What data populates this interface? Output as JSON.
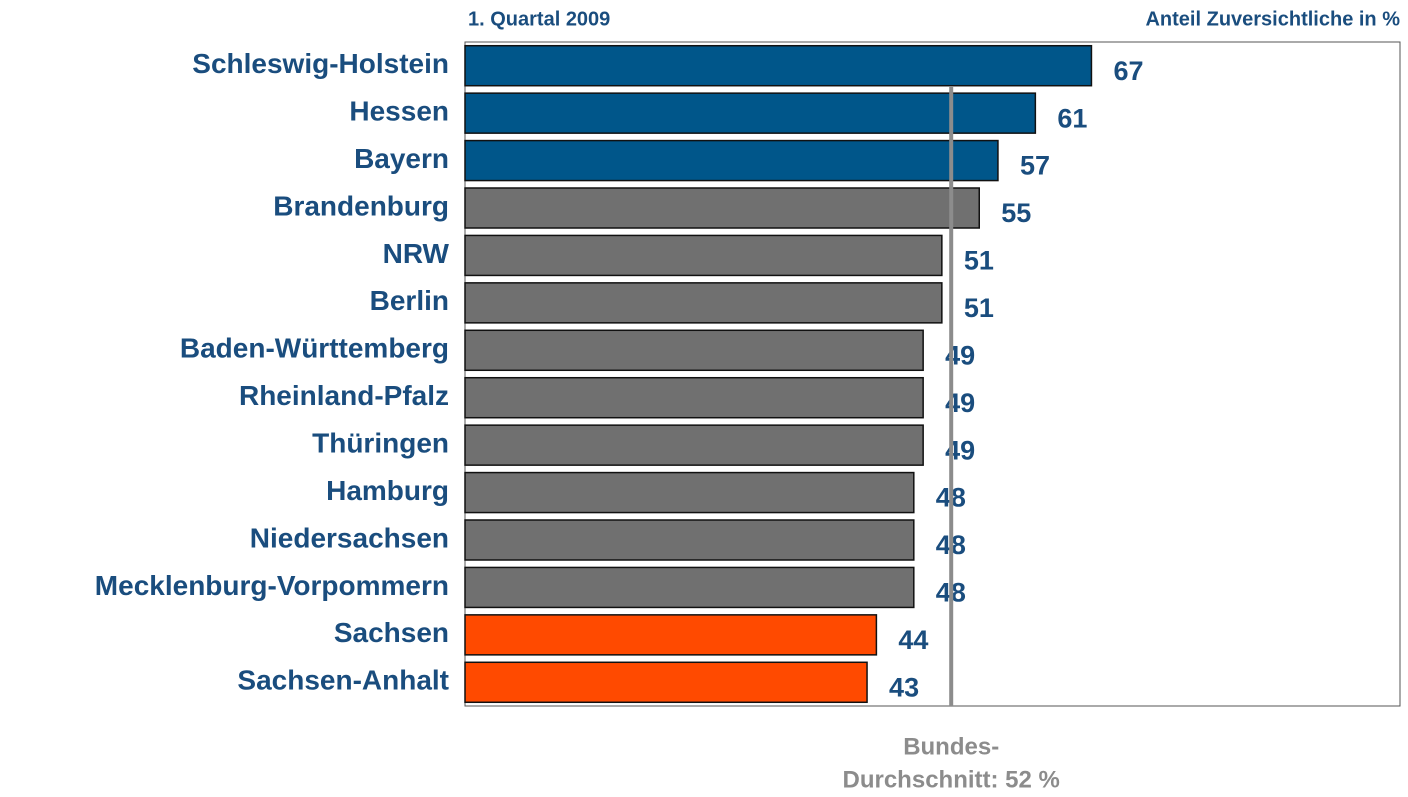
{
  "chart_data": {
    "type": "bar",
    "orientation": "horizontal",
    "subtitle": "1. Quartal 2009",
    "x_label": "Anteil Zuversichtliche in %",
    "categories": [
      "Schleswig-Holstein",
      "Hessen",
      "Bayern",
      "Brandenburg",
      "NRW",
      "Berlin",
      "Baden-Württemberg",
      "Rheinland-Pfalz",
      "Thüringen",
      "Hamburg",
      "Niedersachsen",
      "Mecklenburg-Vorpommern",
      "Sachsen",
      "Sachsen-Anhalt"
    ],
    "values": [
      67,
      61,
      57,
      55,
      51,
      51,
      49,
      49,
      49,
      48,
      48,
      48,
      44,
      43
    ],
    "colors": [
      "#00568a",
      "#00568a",
      "#00568a",
      "#707070",
      "#707070",
      "#707070",
      "#707070",
      "#707070",
      "#707070",
      "#707070",
      "#707070",
      "#707070",
      "#ff4a00",
      "#ff4a00"
    ],
    "xlim": [
      0,
      100
    ],
    "reference_line": {
      "value": 52,
      "color": "#8c8c8c",
      "label": [
        "Bundes-",
        "Durchschnitt: 52 %"
      ]
    }
  }
}
